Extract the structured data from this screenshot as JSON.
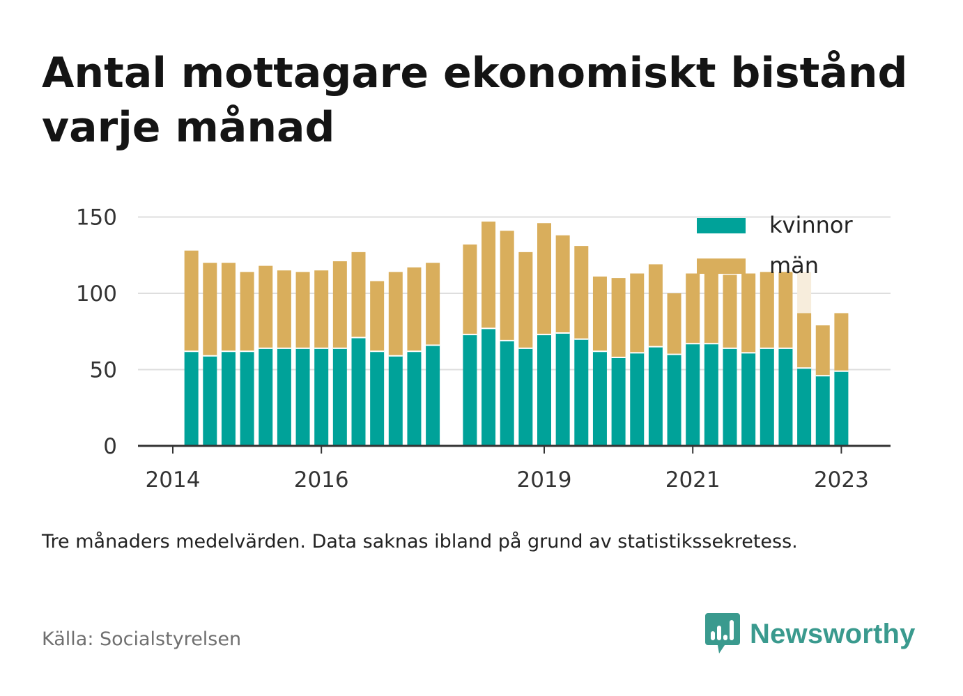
{
  "title": "Antal mottagare ekonomiskt bistånd varje månad",
  "note": "Tre månaders medelvärden. Data saknas ibland på grund av statistikssekretess.",
  "source": "Källa: Socialstyrelsen",
  "brand": {
    "name": "Newsworthy",
    "logo_icon": "bar-chart-speech-bubble-icon"
  },
  "colors": {
    "kvinnor": "#00a299",
    "man": "#d9ae5c",
    "man_faded": "#f7eddc",
    "grid": "#dedede",
    "axis": "#333333",
    "brand": "#3a9a8e"
  },
  "chart_data": {
    "type": "bar",
    "stacked": true,
    "x_unit": "quarter",
    "ylim": [
      0,
      160
    ],
    "yticks": [
      0,
      50,
      100,
      150
    ],
    "xticks": [
      {
        "label": "2014",
        "quarter": 0
      },
      {
        "label": "2016",
        "quarter": 8
      },
      {
        "label": "2019",
        "quarter": 20
      },
      {
        "label": "2021",
        "quarter": 28
      },
      {
        "label": "2023",
        "quarter": 36
      }
    ],
    "legend": {
      "placement": "top-right",
      "entries": [
        {
          "key": "kvinnor",
          "label": "kvinnor"
        },
        {
          "key": "man",
          "label": "män"
        }
      ]
    },
    "grid": true,
    "quarters": [
      1,
      2,
      3,
      4,
      5,
      6,
      7,
      8,
      9,
      10,
      11,
      12,
      13,
      14,
      16,
      17,
      18,
      19,
      20,
      21,
      22,
      23,
      24,
      25,
      26,
      27,
      28,
      29,
      30,
      31,
      32,
      33,
      34,
      35,
      36
    ],
    "series": [
      {
        "name": "kvinnor",
        "values": [
          62,
          59,
          62,
          62,
          64,
          64,
          64,
          64,
          64,
          71,
          62,
          59,
          62,
          66,
          73,
          77,
          69,
          64,
          73,
          74,
          70,
          62,
          58,
          61,
          65,
          60,
          67,
          67,
          64,
          61,
          64,
          64,
          51,
          46,
          49
        ]
      },
      {
        "name": "män",
        "values": [
          66,
          61,
          58,
          52,
          54,
          51,
          50,
          51,
          57,
          56,
          46,
          55,
          55,
          54,
          59,
          70,
          72,
          63,
          73,
          64,
          61,
          49,
          52,
          52,
          54,
          40,
          46,
          46,
          48,
          52,
          50,
          50,
          36,
          33,
          38
        ]
      }
    ],
    "faded_totals": [
      {
        "quarter": 29,
        "value": 113
      },
      {
        "quarter": 30,
        "value": 113
      },
      {
        "quarter": 31,
        "value": 112
      },
      {
        "quarter": 32,
        "value": 113
      },
      {
        "quarter": 33,
        "value": 114
      },
      {
        "quarter": 34,
        "value": 114
      }
    ]
  }
}
